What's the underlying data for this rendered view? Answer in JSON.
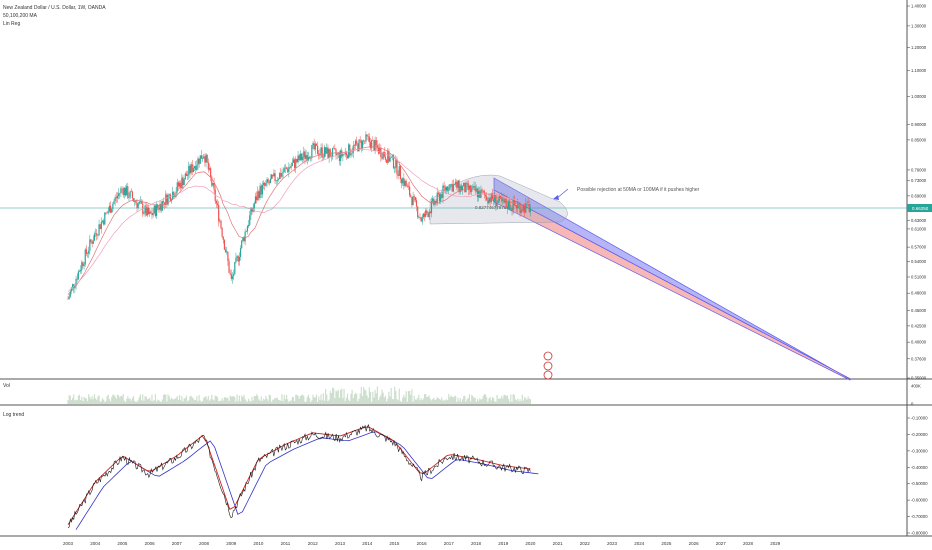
{
  "legend": {
    "title": "New Zealand Dollar / U.S. Dollar, 1W, OANDA",
    "ma": "50,100,200 MA",
    "reg": "Lin Reg"
  },
  "volume_label": "Vol",
  "trend_label": "Log trend",
  "annotation": "Possible rejection at 50MA or 100MA if it pushes higher",
  "price_badge": "0.66250",
  "channel_label": "0.82774677971",
  "colors": {
    "up": "#26a69a",
    "down": "#ef5350",
    "blue_band": "#5c5cf0",
    "red_band": "#f27070",
    "ma_red": "#e57373",
    "ma_pink": "#f0a0b8",
    "log_line": "#1a1a1a",
    "log_ma": "#cc2222",
    "log_ma2": "#3333cc",
    "price_line": "#26a69a"
  },
  "chart_data": [
    {
      "type": "line",
      "title": "New Zealand Dollar / U.S. Dollar, 1W, OANDA",
      "x": [
        "2003",
        "2004",
        "2005",
        "2006",
        "2007",
        "2008",
        "2009",
        "2010",
        "2011",
        "2012",
        "2013",
        "2014",
        "2015",
        "2016",
        "2017",
        "2018",
        "2019",
        "2020"
      ],
      "series": [
        {
          "name": "",
          "values": [
            0.47,
            0.6,
            0.71,
            0.64,
            0.71,
            0.81,
            0.5,
            0.7,
            0.76,
            0.82,
            0.8,
            0.85,
            0.78,
            0.63,
            0.72,
            0.7,
            0.67,
            0.66
          ]
        }
      ],
      "yticks": [
        "1.40000",
        "1.30000",
        "1.20000",
        "1.10000",
        "1.00000",
        "0.90000",
        "0.85000",
        "0.76000",
        "0.73000",
        "0.69000",
        "0.63000",
        "0.61000",
        "0.57000",
        "0.54000",
        "0.51000",
        "0.48000",
        "0.45000",
        "0.42500",
        "0.40000",
        "0.37600",
        "0.35000"
      ],
      "ylim": [
        0.35,
        1.4
      ]
    },
    {
      "type": "bar",
      "title": "Vol",
      "yticks": [
        "400K",
        "0"
      ]
    },
    {
      "type": "line",
      "title": "Log trend",
      "x": [
        "2003",
        "2004",
        "2005",
        "2006",
        "2007",
        "2008",
        "2009",
        "2010",
        "2011",
        "2012",
        "2013",
        "2014",
        "2015",
        "2016",
        "2017",
        "2018",
        "2019",
        "2020"
      ],
      "series": [
        {
          "name": "",
          "values": [
            -0.76,
            -0.5,
            -0.34,
            -0.44,
            -0.34,
            -0.21,
            -0.69,
            -0.36,
            -0.27,
            -0.2,
            -0.22,
            -0.16,
            -0.25,
            -0.46,
            -0.33,
            -0.36,
            -0.4,
            -0.42
          ]
        }
      ],
      "yticks": [
        "-0.10000",
        "-0.20000",
        "-0.30000",
        "-0.40000",
        "-0.50000",
        "-0.60000",
        "-0.70000",
        "-0.80000"
      ],
      "ylim": [
        -0.8,
        -0.1
      ]
    }
  ],
  "time_axis": [
    "2003",
    "2004",
    "2005",
    "2006",
    "2007",
    "2008",
    "2009",
    "2010",
    "2011",
    "2012",
    "2013",
    "2014",
    "2015",
    "2016",
    "2017",
    "2018",
    "2019",
    "2020",
    "2021",
    "2022",
    "2023",
    "2024",
    "2025",
    "2026",
    "2027",
    "2028",
    "2029"
  ]
}
